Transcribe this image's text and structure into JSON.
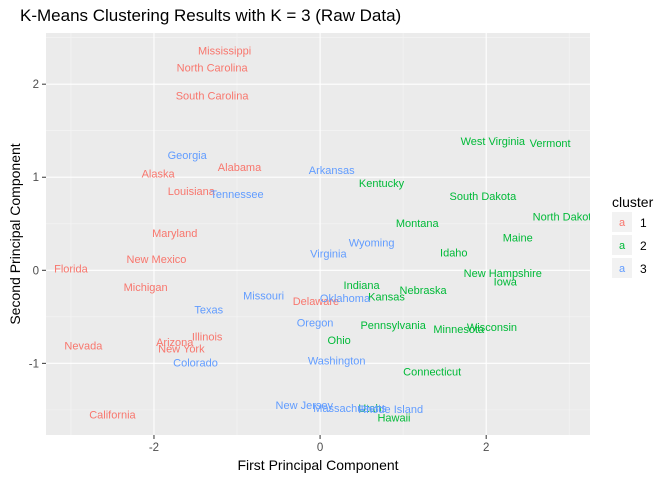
{
  "chart_data": {
    "type": "scatter",
    "title": "K-Means Clustering Results with K = 3 (Raw Data)",
    "xlabel": "First Principal Component",
    "ylabel": "Second Principal Component",
    "xlim": [
      -3.3,
      3.25
    ],
    "ylim": [
      -1.77,
      2.55
    ],
    "x_ticks": [
      -2,
      0,
      2
    ],
    "y_ticks": [
      -1,
      0,
      1,
      2
    ],
    "grid": true,
    "legend": {
      "title": "cluster",
      "position": "right",
      "key_glyph": "a",
      "entries": [
        {
          "label": "1",
          "color": "#F8766D"
        },
        {
          "label": "2",
          "color": "#00BA38"
        },
        {
          "label": "3",
          "color": "#619CFF"
        }
      ]
    },
    "points": [
      {
        "label": "Mississippi",
        "x": -1.15,
        "y": 2.36,
        "cluster": 1
      },
      {
        "label": "North Carolina",
        "x": -1.3,
        "y": 2.18,
        "cluster": 1
      },
      {
        "label": "South Carolina",
        "x": -1.3,
        "y": 1.88,
        "cluster": 1
      },
      {
        "label": "Alabama",
        "x": -0.97,
        "y": 1.11,
        "cluster": 1
      },
      {
        "label": "Alaska",
        "x": -1.95,
        "y": 1.04,
        "cluster": 1
      },
      {
        "label": "Louisiana",
        "x": -1.55,
        "y": 0.85,
        "cluster": 1
      },
      {
        "label": "Maryland",
        "x": -1.75,
        "y": 0.4,
        "cluster": 1
      },
      {
        "label": "New Mexico",
        "x": -1.97,
        "y": 0.12,
        "cluster": 1
      },
      {
        "label": "Florida",
        "x": -3.0,
        "y": 0.02,
        "cluster": 1
      },
      {
        "label": "Michigan",
        "x": -2.1,
        "y": -0.18,
        "cluster": 1
      },
      {
        "label": "Delaware",
        "x": -0.05,
        "y": -0.33,
        "cluster": 1
      },
      {
        "label": "Illinois",
        "x": -1.36,
        "y": -0.71,
        "cluster": 1
      },
      {
        "label": "Arizona",
        "x": -1.75,
        "y": -0.77,
        "cluster": 1
      },
      {
        "label": "New York",
        "x": -1.67,
        "y": -0.84,
        "cluster": 1
      },
      {
        "label": "Nevada",
        "x": -2.85,
        "y": -0.81,
        "cluster": 1
      },
      {
        "label": "California",
        "x": -2.5,
        "y": -1.55,
        "cluster": 1
      },
      {
        "label": "West Virginia",
        "x": 2.08,
        "y": 1.39,
        "cluster": 2
      },
      {
        "label": "Vermont",
        "x": 2.77,
        "y": 1.37,
        "cluster": 2
      },
      {
        "label": "Kentucky",
        "x": 0.74,
        "y": 0.94,
        "cluster": 2
      },
      {
        "label": "South Dakota",
        "x": 1.96,
        "y": 0.8,
        "cluster": 2
      },
      {
        "label": "North Dakota",
        "x": 2.95,
        "y": 0.58,
        "cluster": 2
      },
      {
        "label": "Montana",
        "x": 1.17,
        "y": 0.51,
        "cluster": 2
      },
      {
        "label": "Maine",
        "x": 2.38,
        "y": 0.35,
        "cluster": 2
      },
      {
        "label": "Idaho",
        "x": 1.61,
        "y": 0.19,
        "cluster": 2
      },
      {
        "label": "New Hampshire",
        "x": 2.2,
        "y": -0.03,
        "cluster": 2
      },
      {
        "label": "Iowa",
        "x": 2.23,
        "y": -0.12,
        "cluster": 2
      },
      {
        "label": "Indiana",
        "x": 0.5,
        "y": -0.16,
        "cluster": 2
      },
      {
        "label": "Nebraska",
        "x": 1.24,
        "y": -0.21,
        "cluster": 2
      },
      {
        "label": "Kansas",
        "x": 0.8,
        "y": -0.28,
        "cluster": 2
      },
      {
        "label": "Pennsylvania",
        "x": 0.88,
        "y": -0.59,
        "cluster": 2
      },
      {
        "label": "Minnesota",
        "x": 1.67,
        "y": -0.63,
        "cluster": 2
      },
      {
        "label": "Wisconsin",
        "x": 2.07,
        "y": -0.61,
        "cluster": 2
      },
      {
        "label": "Ohio",
        "x": 0.23,
        "y": -0.75,
        "cluster": 2
      },
      {
        "label": "Connecticut",
        "x": 1.35,
        "y": -1.09,
        "cluster": 2
      },
      {
        "label": "Utah",
        "x": 0.6,
        "y": -1.48,
        "cluster": 2
      },
      {
        "label": "Hawaii",
        "x": 0.89,
        "y": -1.58,
        "cluster": 2
      },
      {
        "label": "Georgia",
        "x": -1.6,
        "y": 1.24,
        "cluster": 3
      },
      {
        "label": "Arkansas",
        "x": 0.14,
        "y": 1.08,
        "cluster": 3
      },
      {
        "label": "Tennessee",
        "x": -1.0,
        "y": 0.82,
        "cluster": 3
      },
      {
        "label": "Wyoming",
        "x": 0.62,
        "y": 0.3,
        "cluster": 3
      },
      {
        "label": "Virginia",
        "x": 0.1,
        "y": 0.18,
        "cluster": 3
      },
      {
        "label": "Missouri",
        "x": -0.68,
        "y": -0.27,
        "cluster": 3
      },
      {
        "label": "Oklahoma",
        "x": 0.3,
        "y": -0.3,
        "cluster": 3
      },
      {
        "label": "Texas",
        "x": -1.34,
        "y": -0.42,
        "cluster": 3
      },
      {
        "label": "Oregon",
        "x": -0.06,
        "y": -0.56,
        "cluster": 3
      },
      {
        "label": "Colorado",
        "x": -1.5,
        "y": -0.99,
        "cluster": 3
      },
      {
        "label": "Washington",
        "x": 0.2,
        "y": -0.97,
        "cluster": 3
      },
      {
        "label": "New Jersey",
        "x": -0.19,
        "y": -1.45,
        "cluster": 3
      },
      {
        "label": "Massachusetts",
        "x": 0.36,
        "y": -1.48,
        "cluster": 3
      },
      {
        "label": "Rhode Island",
        "x": 0.85,
        "y": -1.49,
        "cluster": 3
      }
    ]
  }
}
